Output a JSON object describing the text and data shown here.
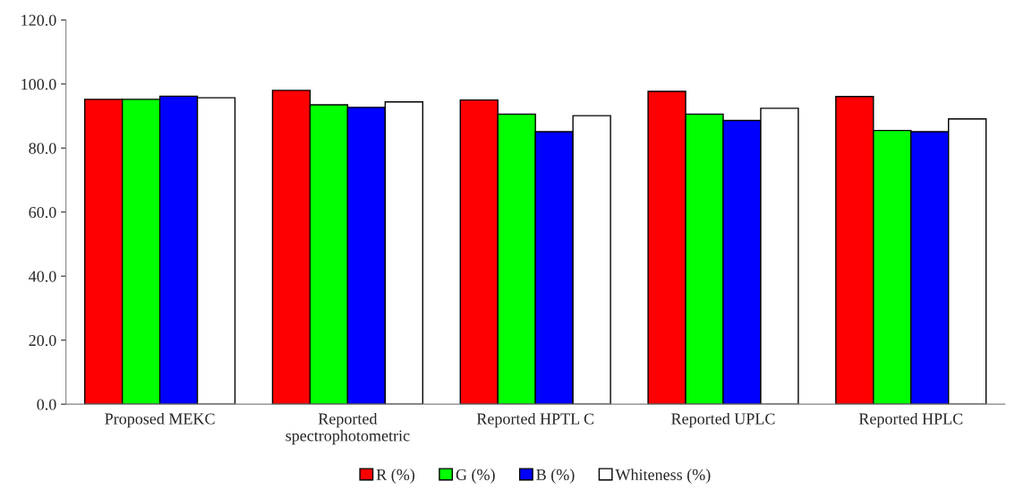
{
  "chart_data": {
    "type": "bar",
    "categories": [
      "Proposed MEKC",
      "Reported\nspectrophotometric",
      "Reported HPTL C",
      "Reported UPLC",
      "Reported HPLC"
    ],
    "series": [
      {
        "name": "R (%)",
        "color": "#ff0000",
        "values": [
          95.2,
          98.0,
          95.0,
          97.7,
          96.1
        ]
      },
      {
        "name": "G (%)",
        "color": "#00ff00",
        "values": [
          95.2,
          93.5,
          90.6,
          90.6,
          85.5
        ]
      },
      {
        "name": "B (%)",
        "color": "#0000ff",
        "values": [
          96.2,
          92.7,
          85.1,
          88.6,
          85.1
        ]
      },
      {
        "name": "Whiteness (%)",
        "color": "#ffffff",
        "values": [
          95.7,
          94.4,
          90.1,
          92.4,
          89.1
        ]
      }
    ],
    "ylim": [
      0,
      120
    ],
    "yticks": [
      {
        "value": 0,
        "label": "0.0"
      },
      {
        "value": 20,
        "label": "20.0"
      },
      {
        "value": 40,
        "label": "40.0"
      },
      {
        "value": 60,
        "label": "60.0"
      },
      {
        "value": 80,
        "label": "80.0"
      },
      {
        "value": 100,
        "label": "100.0"
      },
      {
        "value": 120,
        "label": "120.0"
      }
    ],
    "grid": false,
    "legend": "bottom"
  }
}
